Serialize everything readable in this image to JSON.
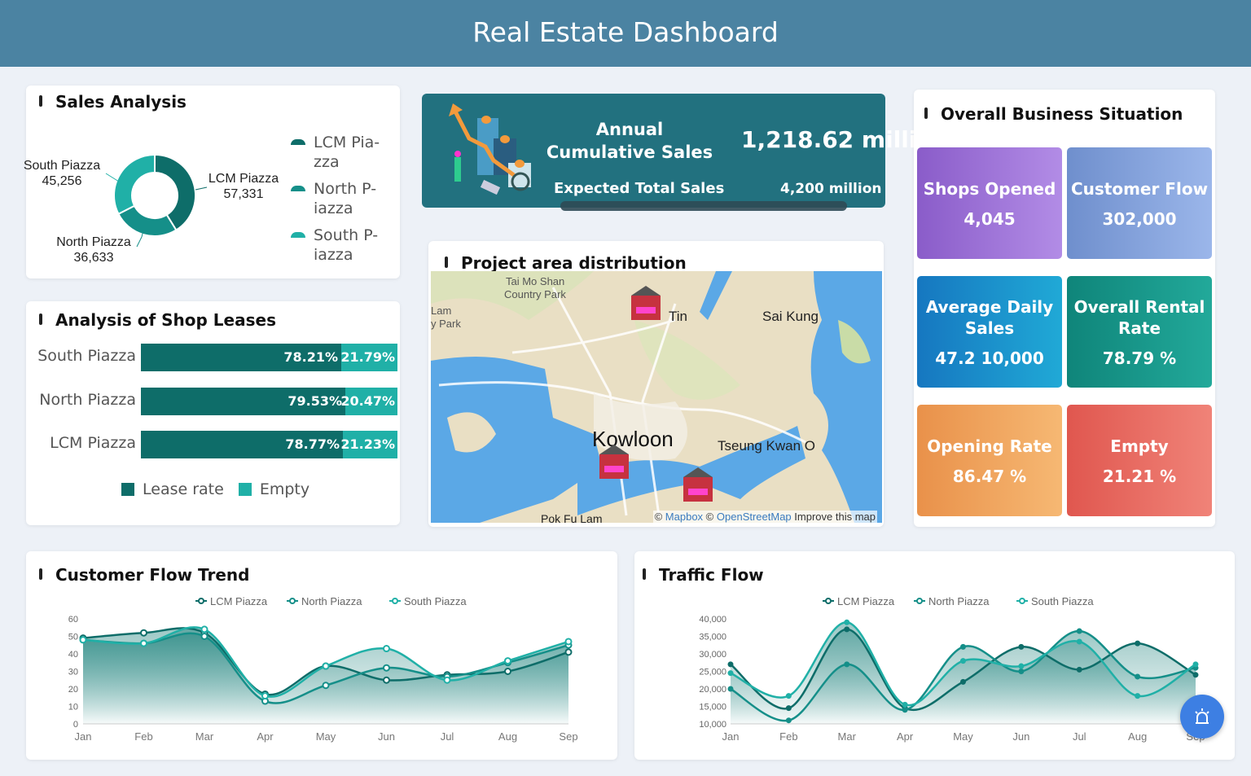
{
  "header": {
    "title": "Real Estate Dashboard"
  },
  "colors": {
    "lcm": "#0e6d69",
    "north": "#158f89",
    "south": "#20b0a7",
    "header": "#4b83a2",
    "banner": "#22717f",
    "fab": "#3d7fe3"
  },
  "sales_analysis": {
    "title": "Sales Analysis",
    "slices": [
      {
        "name": "LCM Piazza",
        "value": 57331,
        "label": "57,331"
      },
      {
        "name": "North Piazza",
        "value": 36633,
        "label": "36,633"
      },
      {
        "name": "South Piazza",
        "value": 45256,
        "label": "45,256"
      }
    ],
    "legend": [
      "LCM Pia-\nzza",
      "North P-\niazza",
      "South P-\niazza"
    ]
  },
  "shop_leases": {
    "title": "Analysis of Shop Leases",
    "rows": [
      {
        "name": "South Piazza",
        "lease": 78.21,
        "empty": 21.79,
        "lease_label": "78.21%",
        "empty_label": "21.79%"
      },
      {
        "name": "North Piazza",
        "lease": 79.53,
        "empty": 20.47,
        "lease_label": "79.53%",
        "empty_label": "20.47%"
      },
      {
        "name": "LCM Piazza",
        "lease": 78.77,
        "empty": 21.23,
        "lease_label": "78.77%",
        "empty_label": "21.23%"
      }
    ],
    "legend": {
      "lease": "Lease rate",
      "empty": "Empty"
    }
  },
  "banner": {
    "title_line1": "Annual",
    "title_line2": "Cumulative Sales",
    "value": "1,218.62 milli",
    "expected_label": "Expected Total Sales",
    "expected_value": "4,200 million"
  },
  "map": {
    "title": "Project area distribution",
    "places": [
      "Tai Mo Shan\nCountry Park",
      "Lam\ny Park",
      "Tin",
      "Sai Kung",
      "Kowloon",
      "Tseung Kwan O",
      "Pok Fu Lam"
    ],
    "attribution": {
      "prefix": "©",
      "mapbox": "Mapbox",
      "sep": "©",
      "osm": "OpenStreetMap",
      "improve": "Improve this map"
    }
  },
  "business": {
    "title": "Overall Business Situation",
    "tiles": [
      {
        "title": "Shops Opened",
        "value": "4,045"
      },
      {
        "title": "Customer Flow",
        "value": "302,000"
      },
      {
        "title": "Average Daily Sales",
        "value": "47.2 10,000"
      },
      {
        "title": "Overall Rental Rate",
        "value": "78.79 %"
      },
      {
        "title": "Opening Rate",
        "value": "86.47 %"
      },
      {
        "title": "Empty",
        "value": "21.21 %"
      }
    ]
  },
  "customer_flow": {
    "title": "Customer Flow Trend"
  },
  "traffic_flow": {
    "title": "Traffic Flow"
  },
  "chart_data": [
    {
      "type": "area",
      "title": "Customer Flow Trend",
      "categories": [
        "Jan",
        "Feb",
        "Mar",
        "Apr",
        "May",
        "Jun",
        "Jul",
        "Aug",
        "Sep"
      ],
      "ylim": [
        0,
        60
      ],
      "yticks": [
        "0",
        "10",
        "20",
        "30",
        "40",
        "50",
        "60"
      ],
      "legend": "top",
      "series": [
        {
          "name": "LCM Piazza",
          "values": [
            49,
            52,
            52,
            17,
            33,
            25,
            28,
            30,
            41
          ]
        },
        {
          "name": "North Piazza",
          "values": [
            48,
            46,
            50,
            13,
            22,
            32,
            27,
            35,
            45
          ]
        },
        {
          "name": "South Piazza",
          "values": [
            48,
            46,
            54,
            16,
            33,
            43,
            25,
            36,
            47
          ]
        }
      ]
    },
    {
      "type": "area",
      "title": "Traffic Flow",
      "categories": [
        "Jan",
        "Feb",
        "Mar",
        "Apr",
        "May",
        "Jun",
        "Jul",
        "Aug",
        "Sep"
      ],
      "ylim": [
        10000,
        40000
      ],
      "yticks": [
        "10,000",
        "15,000",
        "20,000",
        "25,000",
        "30,000",
        "35,000",
        "40,000"
      ],
      "legend": "top",
      "series": [
        {
          "name": "LCM Piazza",
          "values": [
            27000,
            14500,
            37000,
            14500,
            22000,
            32000,
            25500,
            33000,
            24000
          ]
        },
        {
          "name": "North Piazza",
          "values": [
            20000,
            11000,
            27000,
            14000,
            32000,
            25000,
            36500,
            23500,
            26000
          ]
        },
        {
          "name": "South Piazza",
          "values": [
            24500,
            18000,
            39000,
            15500,
            28000,
            26500,
            33500,
            18000,
            27000
          ]
        }
      ]
    }
  ]
}
